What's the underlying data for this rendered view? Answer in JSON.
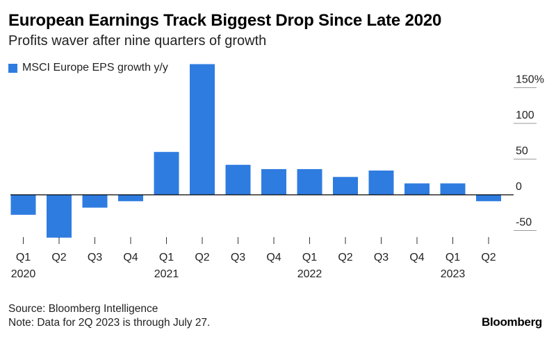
{
  "title": "European Earnings Track Biggest Drop Since Late 2020",
  "subtitle": "Profits waver after nine quarters of growth",
  "footer": {
    "source": "Source: Bloomberg Intelligence",
    "note": "Note: Data for 2Q 2023 is through July 27.",
    "brand": "Bloomberg"
  },
  "colors": {
    "bar": "#2f7ce0",
    "grid": "#9a9a9a",
    "axis": "#000000"
  },
  "chart_data": {
    "type": "bar",
    "title": "European Earnings Track Biggest Drop Since Late 2020",
    "subtitle": "Profits waver after nine quarters of growth",
    "categories": [
      "Q1",
      "Q2",
      "Q3",
      "Q4",
      "Q1",
      "Q2",
      "Q3",
      "Q4",
      "Q1",
      "Q2",
      "Q3",
      "Q4",
      "Q1",
      "Q2"
    ],
    "year_labels": [
      "2020",
      "",
      "",
      "",
      "2021",
      "",
      "",
      "",
      "2022",
      "",
      "",
      "",
      "2023",
      ""
    ],
    "series": [
      {
        "name": "MSCI Europe EPS growth y/y",
        "values": [
          -28,
          -60,
          -18,
          -9,
          60,
          183,
          42,
          36,
          36,
          25,
          34,
          16,
          16,
          -9
        ]
      }
    ],
    "yticks": [
      {
        "value": 150,
        "label": "150%"
      },
      {
        "value": 100,
        "label": "100"
      },
      {
        "value": 50,
        "label": "50"
      },
      {
        "value": 0,
        "label": "0"
      },
      {
        "value": -50,
        "label": "-50"
      }
    ],
    "ylim": [
      -60,
      183
    ],
    "xlabel": "",
    "ylabel": "",
    "grid": true,
    "legend_position": "top-left"
  }
}
